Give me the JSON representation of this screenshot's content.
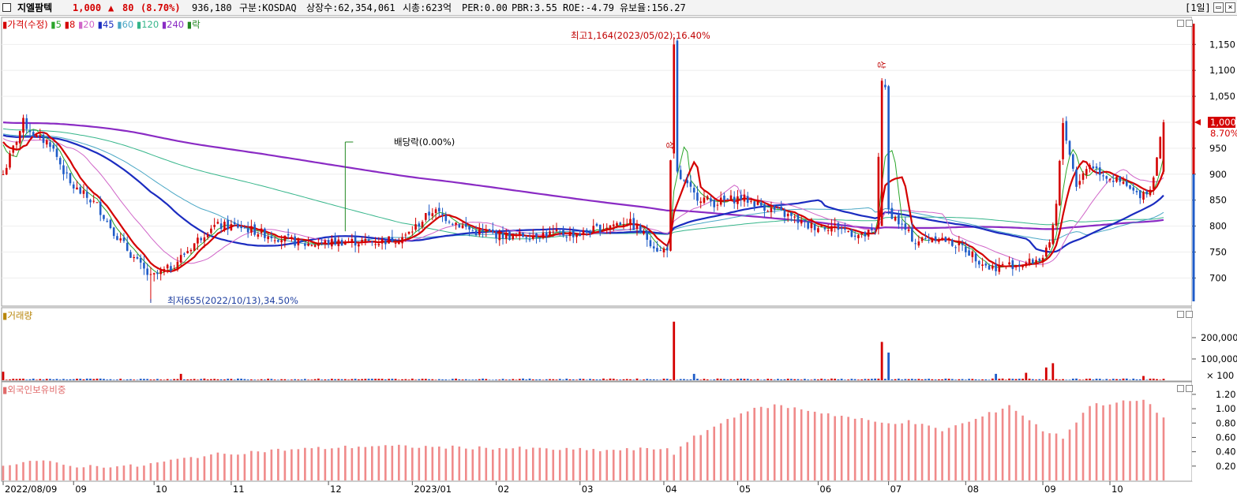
{
  "header": {
    "stock_name": "지엘팜텍",
    "price": "1,000",
    "change_arrow": "▲",
    "change": "80",
    "change_pct": "(8.70%)",
    "volume": "936,180",
    "market": "구분:KOSDAQ",
    "shares": "상장수:62,354,061",
    "market_cap": "시총:623억",
    "per": "PER:0.00",
    "pbr": "PBR:3.55",
    "roe": "ROE:-4.79",
    "float_ratio": "유보율:156.27",
    "period": "[1일]"
  },
  "price_panel": {
    "legend": [
      {
        "label": "가격(수정)",
        "color": "#d40000"
      },
      {
        "label": "5",
        "color": "#2aa52a"
      },
      {
        "label": "8",
        "color": "#d40000"
      },
      {
        "label": "20",
        "color": "#d065c8"
      },
      {
        "label": "45",
        "color": "#1b2cc0"
      },
      {
        "label": "60",
        "color": "#4aa7c5"
      },
      {
        "label": "120",
        "color": "#35b58a"
      },
      {
        "label": "240",
        "color": "#8a2bc4"
      },
      {
        "label": "락",
        "color": "#228822"
      }
    ],
    "y_ticks": [
      "1,150",
      "1,100",
      "1,050",
      "950",
      "900",
      "850",
      "800",
      "750",
      "700"
    ],
    "current_price_label": "1,000",
    "current_pct_label": "8.70%",
    "high_annotation": "최고1,164(2023/05/02),16.40%",
    "low_annotation": "최저655(2022/10/13),34.50%",
    "dividend_annotation": "배당락(0.00%)",
    "limit_up_marker": "상"
  },
  "volume_panel": {
    "legend": "거래량",
    "y_ticks": [
      "200,000",
      "100,000",
      "× 100"
    ]
  },
  "foreign_panel": {
    "legend": "외국인보유비중",
    "y_ticks": [
      "1.20",
      "1.00",
      "0.80",
      "0.60",
      "0.40",
      "0.20"
    ]
  },
  "x_axis": {
    "labels": [
      "2022/08/09",
      "09",
      "10",
      "11",
      "12",
      "2023/01",
      "02",
      "03",
      "04",
      "05",
      "06",
      "07",
      "08",
      "09",
      "10"
    ]
  },
  "colors": {
    "up": "#d40000",
    "down": "#1f5cc8",
    "foreign_bar": "#f08a8a"
  },
  "chart_data": {
    "type": "candlestick",
    "price_range": [
      655,
      1190
    ],
    "high": {
      "value": 1164,
      "date": "2023/05/02"
    },
    "low": {
      "value": 655,
      "date": "2022/10/13"
    },
    "last": 1000,
    "keypoints": [
      [
        0,
        900
      ],
      [
        6,
        1000
      ],
      [
        10,
        970
      ],
      [
        14,
        960
      ],
      [
        20,
        880
      ],
      [
        28,
        840
      ],
      [
        34,
        780
      ],
      [
        40,
        730
      ],
      [
        44,
        700
      ],
      [
        50,
        720
      ],
      [
        56,
        760
      ],
      [
        62,
        800
      ],
      [
        70,
        800
      ],
      [
        78,
        785
      ],
      [
        90,
        765
      ],
      [
        100,
        770
      ],
      [
        112,
        770
      ],
      [
        120,
        780
      ],
      [
        128,
        830
      ],
      [
        134,
        810
      ],
      [
        140,
        790
      ],
      [
        152,
        780
      ],
      [
        160,
        785
      ],
      [
        172,
        785
      ],
      [
        180,
        800
      ],
      [
        186,
        810
      ],
      [
        190,
        790
      ],
      [
        196,
        750
      ],
      [
        198,
        760
      ],
      [
        199,
        920
      ],
      [
        200,
        1150
      ],
      [
        201,
        900
      ],
      [
        206,
        860
      ],
      [
        212,
        845
      ],
      [
        220,
        855
      ],
      [
        226,
        840
      ],
      [
        234,
        820
      ],
      [
        240,
        800
      ],
      [
        248,
        800
      ],
      [
        256,
        780
      ],
      [
        260,
        790
      ],
      [
        262,
        1080
      ],
      [
        263,
        1060
      ],
      [
        264,
        830
      ],
      [
        268,
        800
      ],
      [
        272,
        770
      ],
      [
        278,
        780
      ],
      [
        286,
        760
      ],
      [
        294,
        720
      ],
      [
        300,
        725
      ],
      [
        306,
        730
      ],
      [
        310,
        740
      ],
      [
        312,
        760
      ],
      [
        314,
        840
      ],
      [
        316,
        1000
      ],
      [
        320,
        880
      ],
      [
        324,
        920
      ],
      [
        328,
        900
      ],
      [
        334,
        880
      ],
      [
        338,
        860
      ],
      [
        342,
        870
      ],
      [
        346,
        1000
      ]
    ],
    "volume_spikes": [
      [
        0,
        40
      ],
      [
        53,
        30
      ],
      [
        200,
        275
      ],
      [
        206,
        30
      ],
      [
        262,
        180
      ],
      [
        264,
        130
      ],
      [
        296,
        30
      ],
      [
        305,
        35
      ],
      [
        311,
        60
      ],
      [
        313,
        80
      ],
      [
        340,
        20
      ]
    ],
    "foreign_ratio_keypoints": [
      [
        0,
        0.22
      ],
      [
        10,
        0.28
      ],
      [
        20,
        0.2
      ],
      [
        40,
        0.2
      ],
      [
        60,
        0.35
      ],
      [
        80,
        0.42
      ],
      [
        110,
        0.48
      ],
      [
        150,
        0.45
      ],
      [
        180,
        0.42
      ],
      [
        199,
        0.45
      ],
      [
        200,
        0.38
      ],
      [
        206,
        0.6
      ],
      [
        220,
        0.95
      ],
      [
        230,
        1.05
      ],
      [
        240,
        0.98
      ],
      [
        262,
        0.8
      ],
      [
        270,
        0.82
      ],
      [
        280,
        0.7
      ],
      [
        290,
        0.85
      ],
      [
        300,
        1.05
      ],
      [
        310,
        0.7
      ],
      [
        316,
        0.6
      ],
      [
        324,
        1.05
      ],
      [
        340,
        1.12
      ],
      [
        346,
        0.88
      ]
    ]
  }
}
